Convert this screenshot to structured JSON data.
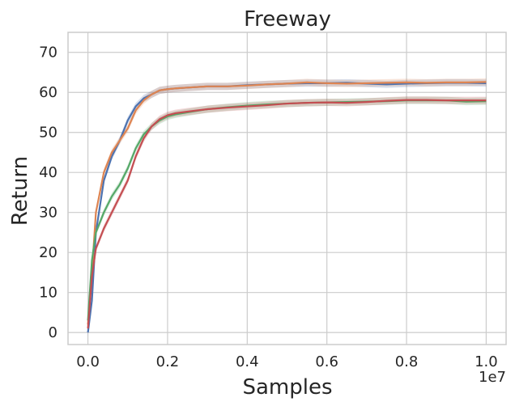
{
  "chart_data": {
    "type": "line",
    "title": "Freeway",
    "xlabel": "Samples",
    "ylabel": "Return",
    "x_offset_label": "1e7",
    "xlim": [
      -0.05,
      1.05
    ],
    "ylim": [
      -3,
      75
    ],
    "x_ticks": [
      0.0,
      0.2,
      0.4,
      0.6,
      0.8,
      1.0
    ],
    "x_tick_labels": [
      "0.0",
      "0.2",
      "0.4",
      "0.6",
      "0.8",
      "1.0"
    ],
    "y_ticks": [
      0,
      10,
      20,
      30,
      40,
      50,
      60,
      70
    ],
    "y_tick_labels": [
      "0",
      "10",
      "20",
      "30",
      "40",
      "50",
      "60",
      "70"
    ],
    "grid": true,
    "legend": "none",
    "series": [
      {
        "color": "#4c72b0",
        "x": [
          0.0,
          0.01,
          0.02,
          0.04,
          0.06,
          0.08,
          0.1,
          0.12,
          0.14,
          0.16,
          0.18,
          0.2,
          0.22,
          0.25,
          0.3,
          0.35,
          0.4,
          0.45,
          0.5,
          0.55,
          0.6,
          0.65,
          0.7,
          0.75,
          0.8,
          0.85,
          0.9,
          0.95,
          1.0
        ],
        "y": [
          0,
          8,
          25,
          38,
          44,
          48,
          53,
          56.5,
          58.5,
          59.5,
          60.5,
          60.8,
          61,
          61.2,
          61.5,
          61.5,
          61.8,
          62,
          62.2,
          62.3,
          62.3,
          62.4,
          62.2,
          62.0,
          62.2,
          62.3,
          62.4,
          62.4,
          62.3
        ]
      },
      {
        "color": "#dd8452",
        "x": [
          0.0,
          0.01,
          0.02,
          0.04,
          0.06,
          0.08,
          0.1,
          0.12,
          0.14,
          0.16,
          0.18,
          0.2,
          0.22,
          0.25,
          0.3,
          0.35,
          0.4,
          0.45,
          0.5,
          0.55,
          0.6,
          0.65,
          0.7,
          0.75,
          0.8,
          0.85,
          0.9,
          0.95,
          1.0
        ],
        "y": [
          2,
          15,
          30,
          40,
          45,
          48,
          51,
          55.5,
          58,
          59.5,
          60.5,
          60.8,
          61,
          61.2,
          61.5,
          61.5,
          61.7,
          62,
          62.2,
          62.5,
          62.3,
          62.2,
          62.3,
          62.4,
          62.5,
          62.4,
          62.5,
          62.5,
          62.6
        ]
      },
      {
        "color": "#55a868",
        "x": [
          0.0,
          0.01,
          0.02,
          0.04,
          0.06,
          0.08,
          0.1,
          0.12,
          0.14,
          0.16,
          0.18,
          0.2,
          0.22,
          0.25,
          0.3,
          0.35,
          0.4,
          0.45,
          0.5,
          0.55,
          0.6,
          0.65,
          0.7,
          0.75,
          0.8,
          0.85,
          0.9,
          0.95,
          1.0
        ],
        "y": [
          3,
          18,
          25,
          30,
          34,
          37,
          41,
          46,
          49.5,
          51.5,
          53,
          54,
          54.5,
          55,
          55.8,
          56.3,
          56.7,
          57,
          57.2,
          57.4,
          57.5,
          57.6,
          57.7,
          57.8,
          58,
          58,
          58,
          57.7,
          57.8
        ]
      },
      {
        "color": "#c44e52",
        "x": [
          0.0,
          0.01,
          0.02,
          0.04,
          0.06,
          0.08,
          0.1,
          0.12,
          0.14,
          0.16,
          0.18,
          0.2,
          0.22,
          0.25,
          0.3,
          0.35,
          0.4,
          0.45,
          0.5,
          0.55,
          0.6,
          0.65,
          0.7,
          0.75,
          0.8,
          0.85,
          0.9,
          0.95,
          1.0
        ],
        "y": [
          1,
          14,
          21,
          26,
          30,
          34,
          38,
          44,
          48.5,
          51.5,
          53.3,
          54.3,
          54.8,
          55.2,
          55.8,
          56.2,
          56.5,
          56.8,
          57.2,
          57.4,
          57.5,
          57.4,
          57.6,
          57.9,
          58.1,
          58.1,
          58.0,
          58.0,
          58.0
        ]
      }
    ]
  }
}
